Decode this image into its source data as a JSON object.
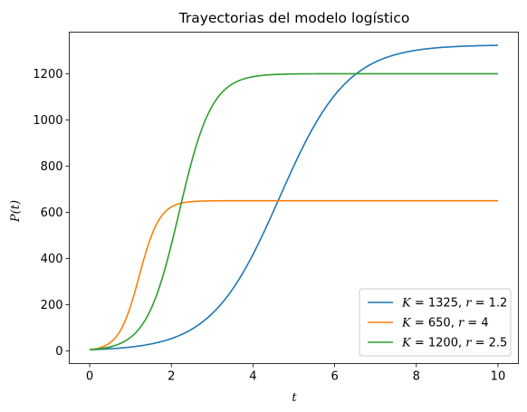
{
  "chart_data": {
    "type": "line",
    "title": "Trayectorias del modelo logístico",
    "xlabel": "t",
    "ylabel": "P(t)",
    "xlim": [
      -0.5,
      10.5
    ],
    "ylim": [
      -55,
      1380
    ],
    "x_ticks": [
      0,
      2,
      4,
      6,
      8,
      10
    ],
    "y_ticks": [
      0,
      200,
      400,
      600,
      800,
      1000,
      1200
    ],
    "grid": false,
    "legend_position": "lower-right",
    "series": [
      {
        "name": "K = 1325, r = 1.2",
        "legend": {
          "k_label": "K",
          "k_value": "1325",
          "r_label": "r",
          "r_value": "1.2"
        },
        "model": "logistic",
        "K": 1325,
        "r": 1.2,
        "P0": 5,
        "color": "#1f77b4"
      },
      {
        "name": "K = 650, r = 4",
        "legend": {
          "k_label": "K",
          "k_value": "650",
          "r_label": "r",
          "r_value": "4"
        },
        "model": "logistic",
        "K": 650,
        "r": 4,
        "P0": 5,
        "color": "#ff7f0e"
      },
      {
        "name": "K = 1200, r = 2.5",
        "legend": {
          "k_label": "K",
          "k_value": "1200",
          "r_label": "r",
          "r_value": "2.5"
        },
        "model": "logistic",
        "K": 1200,
        "r": 2.5,
        "P0": 5,
        "color": "#2ca02c"
      }
    ]
  }
}
